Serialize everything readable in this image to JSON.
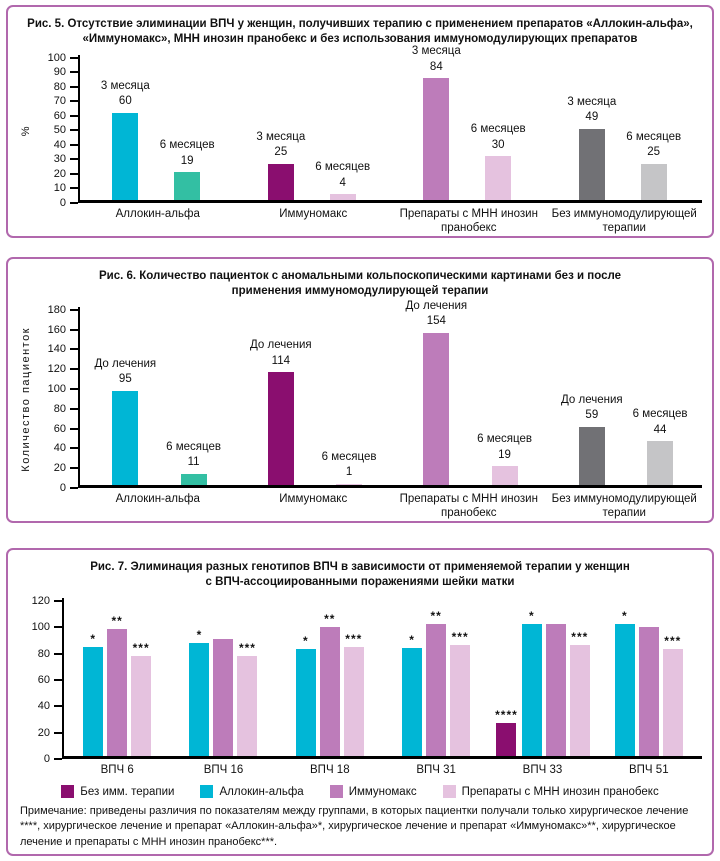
{
  "palette": {
    "cyan": "#00b6d5",
    "teal": "#33bfa3",
    "magenta_dark": "#8a0e6f",
    "orchid": "#bd7cba",
    "pink_light": "#e5c2df",
    "gray_dark": "#717175",
    "gray_light": "#c5c5c7",
    "box_border": "#b168ad",
    "axis": "#000000"
  },
  "chart_data": [
    {
      "type": "bar",
      "title": "Рис. 5. Отсутствие элиминации ВПЧ у женщин, получивших терапию с применением препаратов «Аллокин-альфа», «Иммуномакс», МНН инозин пранобекс и без использования иммуномодулирующих препаратов",
      "ylabel": "%",
      "xlabel": "",
      "ymax": 100,
      "ystep": 10,
      "ylim": [
        0,
        100
      ],
      "grid": false,
      "groups": [
        {
          "label": "Аллокин-альфа",
          "bars": [
            {
              "label": "3 месяца",
              "value": 60,
              "color": "cyan"
            },
            {
              "label": "6 месяцев",
              "value": 19,
              "color": "teal"
            }
          ]
        },
        {
          "label": "Иммуномакс",
          "bars": [
            {
              "label": "3 месяца",
              "value": 25,
              "color": "magenta_dark"
            },
            {
              "label": "6 месяцев",
              "value": 4,
              "color": "pink_light"
            }
          ]
        },
        {
          "label": "Препараты с МНН инозин пранобекс",
          "bars": [
            {
              "label": "3 месяца",
              "value": 84,
              "color": "orchid"
            },
            {
              "label": "6 месяцев",
              "value": 30,
              "color": "pink_light"
            }
          ]
        },
        {
          "label": "Без иммуномодулирующей терапии",
          "bars": [
            {
              "label": "3 месяца",
              "value": 49,
              "color": "gray_dark"
            },
            {
              "label": "6 месяцев",
              "value": 25,
              "color": "gray_light"
            }
          ]
        }
      ]
    },
    {
      "type": "bar",
      "title": "Рис. 6. Количество пациенток с аномальными кольпоскопическими картинами без и после применения иммуномодулирующей терапии",
      "ylabel": "Количество пациенток",
      "xlabel": "",
      "ymax": 180,
      "ystep": 20,
      "ylim": [
        0,
        180
      ],
      "grid": false,
      "groups": [
        {
          "label": "Аллокин-альфа",
          "bars": [
            {
              "label": "До лечения",
              "value": 95,
              "color": "cyan"
            },
            {
              "label": "6 месяцев",
              "value": 11,
              "color": "teal"
            }
          ]
        },
        {
          "label": "Иммуномакс",
          "bars": [
            {
              "label": "До лечения",
              "value": 114,
              "color": "magenta_dark"
            },
            {
              "label": "6 месяцев",
              "value": 1,
              "color": "pink_light"
            }
          ]
        },
        {
          "label": "Препараты с МНН инозин пранобекс",
          "bars": [
            {
              "label": "До лечения",
              "value": 154,
              "color": "orchid"
            },
            {
              "label": "6 месяцев",
              "value": 19,
              "color": "pink_light"
            }
          ]
        },
        {
          "label": "Без иммуномодулирующей терапии",
          "bars": [
            {
              "label": "До лечения",
              "value": 59,
              "color": "gray_dark"
            },
            {
              "label": "6 месяцев",
              "value": 44,
              "color": "gray_light"
            }
          ]
        }
      ]
    },
    {
      "type": "bar",
      "title": "Рис. 7. Элиминация разных генотипов ВПЧ в зависимости от применяемой терапии у женщин с ВПЧ-ассоциированными поражениями шейки матки",
      "ylabel": "",
      "xlabel": "",
      "ymax": 120,
      "ystep": 20,
      "ylim": [
        0,
        120
      ],
      "grid": false,
      "legend_position": "bottom",
      "categories": [
        "ВПЧ 6",
        "ВПЧ 16",
        "ВПЧ 18",
        "ВПЧ 31",
        "ВПЧ 33",
        "ВПЧ 51"
      ],
      "series": [
        {
          "name": "Без имм. терапии",
          "color": "magenta_dark",
          "values": [
            null,
            null,
            null,
            null,
            25,
            null
          ],
          "notes": [
            null,
            null,
            null,
            null,
            "****",
            null
          ]
        },
        {
          "name": "Аллокин-альфа",
          "color": "cyan",
          "values": [
            83,
            86,
            81,
            82,
            100,
            100
          ],
          "notes": [
            "*",
            "*",
            "*",
            "*",
            "*",
            "*"
          ]
        },
        {
          "name": "Иммуномакс",
          "color": "orchid",
          "values": [
            96,
            89,
            98,
            100,
            100,
            98
          ],
          "notes": [
            "**",
            null,
            "**",
            "**",
            null,
            null
          ]
        },
        {
          "name": "Препараты с МНН инозин пранобекс",
          "color": "pink_light",
          "values": [
            76,
            76,
            83,
            84,
            84,
            81
          ],
          "notes": [
            "***",
            "***",
            "***",
            "***",
            "***",
            "***"
          ]
        }
      ],
      "note": "Примечание: приведены различия по показателям между группами, в которых пациентки получали только хирургическое лечение ****, хирургическое лечение и препарат «Аллокин-альфа»*, хирургическое лечение и препарат «Иммуномакс»**, хирургическое лечение и препараты с МНН инозин пранобекс***."
    }
  ]
}
